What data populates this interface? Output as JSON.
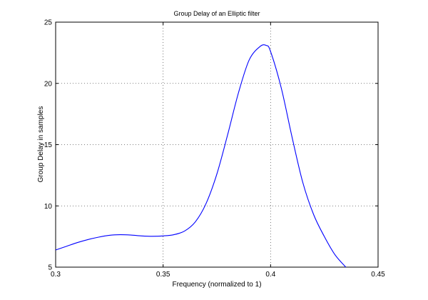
{
  "chart_data": {
    "type": "line",
    "title": "Group Delay of an Elliptic filter",
    "xlabel": "Frequency (normalized to 1)",
    "ylabel": "Group Delay in samples",
    "xlim": [
      0.3,
      0.45
    ],
    "ylim": [
      5,
      25
    ],
    "xticks": [
      0.3,
      0.35,
      0.4,
      0.45
    ],
    "xtick_labels": [
      "0.3",
      "0.35",
      "0.4",
      "0.45"
    ],
    "yticks": [
      5,
      10,
      15,
      20,
      25
    ],
    "ytick_labels": [
      "5",
      "10",
      "15",
      "20",
      "25"
    ],
    "grid": true,
    "series": [
      {
        "color": "#0000ff",
        "x": [
          0.3,
          0.305,
          0.31,
          0.315,
          0.32,
          0.325,
          0.33,
          0.335,
          0.34,
          0.345,
          0.35,
          0.355,
          0.36,
          0.365,
          0.37,
          0.375,
          0.38,
          0.385,
          0.39,
          0.395,
          0.398,
          0.4,
          0.405,
          0.41,
          0.415,
          0.42,
          0.425,
          0.43,
          0.435
        ],
        "y": [
          6.4,
          6.7,
          7.0,
          7.25,
          7.45,
          7.6,
          7.65,
          7.62,
          7.55,
          7.52,
          7.55,
          7.65,
          7.95,
          8.7,
          10.2,
          12.6,
          15.8,
          19.2,
          21.9,
          23.0,
          23.1,
          22.6,
          19.6,
          15.6,
          11.9,
          9.3,
          7.5,
          6.0,
          5.0
        ]
      }
    ]
  }
}
